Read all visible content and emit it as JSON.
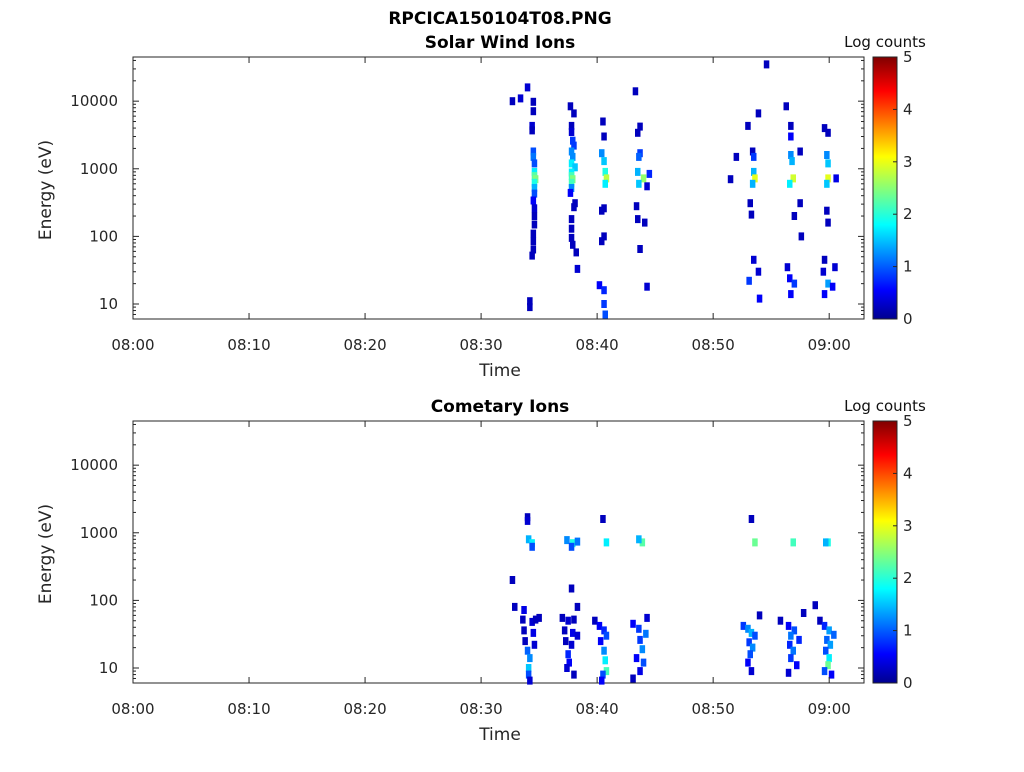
{
  "figure": {
    "title": "RPCICA150104T08.PNG"
  },
  "chart_data": [
    {
      "type": "heatmap",
      "title": "Solar Wind Ions",
      "xlabel": "Time",
      "ylabel": "Energy (eV)",
      "x_tick_labels": [
        "08:00",
        "08:10",
        "08:20",
        "08:30",
        "08:40",
        "08:50",
        "09:00"
      ],
      "x_ticks_min": [
        0,
        10,
        20,
        30,
        40,
        50,
        60
      ],
      "xlim_min": [
        0,
        63
      ],
      "y_scale": "log",
      "y_tick_labels": [
        "10",
        "100",
        "1000",
        "10000"
      ],
      "y_ticks": [
        10,
        100,
        1000,
        10000
      ],
      "ylim": [
        6,
        45000
      ],
      "colorbar": {
        "label": "Log counts",
        "ticks": [
          "0",
          "1",
          "2",
          "3",
          "4",
          "5"
        ],
        "range": [
          0,
          5
        ],
        "colormap": "jet"
      },
      "cells": [
        [
          32.7,
          10000,
          0.3
        ],
        [
          33.4,
          11000,
          0.4
        ],
        [
          34.0,
          16000,
          0.4
        ],
        [
          34.5,
          9800,
          0.3
        ],
        [
          34.5,
          7100,
          0.3
        ],
        [
          34.4,
          4300,
          0.4
        ],
        [
          34.4,
          3700,
          0.3
        ],
        [
          34.5,
          1800,
          1.0
        ],
        [
          34.5,
          1500,
          1.2
        ],
        [
          34.6,
          1200,
          1.0
        ],
        [
          34.6,
          900,
          1.8
        ],
        [
          34.6,
          780,
          2.3
        ],
        [
          34.7,
          700,
          2.5
        ],
        [
          34.6,
          620,
          2.0
        ],
        [
          34.6,
          520,
          1.5
        ],
        [
          34.6,
          430,
          1.0
        ],
        [
          34.5,
          340,
          0.6
        ],
        [
          34.6,
          260,
          0.4
        ],
        [
          34.6,
          200,
          0.3
        ],
        [
          34.6,
          150,
          0.3
        ],
        [
          34.5,
          110,
          0.3
        ],
        [
          34.5,
          85,
          0.3
        ],
        [
          34.5,
          64,
          0.3
        ],
        [
          34.4,
          52,
          0.3
        ],
        [
          34.2,
          11,
          0.3
        ],
        [
          34.2,
          9,
          0.3
        ],
        [
          37.7,
          8400,
          0.3
        ],
        [
          38.0,
          6600,
          0.3
        ],
        [
          37.8,
          4300,
          0.3
        ],
        [
          37.8,
          3500,
          0.4
        ],
        [
          37.9,
          2600,
          0.9
        ],
        [
          38.0,
          2200,
          0.9
        ],
        [
          37.8,
          1800,
          1.3
        ],
        [
          37.9,
          1500,
          1.3
        ],
        [
          37.8,
          1200,
          1.8
        ],
        [
          38.1,
          1050,
          1.6
        ],
        [
          37.8,
          880,
          1.8
        ],
        [
          37.8,
          780,
          2.2
        ],
        [
          37.9,
          700,
          2.5
        ],
        [
          37.8,
          620,
          2.2
        ],
        [
          37.8,
          520,
          1.3
        ],
        [
          37.7,
          440,
          0.6
        ],
        [
          38.1,
          310,
          0.3
        ],
        [
          38.0,
          270,
          0.3
        ],
        [
          37.8,
          180,
          0.3
        ],
        [
          37.8,
          130,
          0.3
        ],
        [
          37.8,
          95,
          0.3
        ],
        [
          37.9,
          75,
          0.3
        ],
        [
          38.2,
          58,
          0.3
        ],
        [
          38.3,
          33,
          0.4
        ],
        [
          40.4,
          1700,
          1.3
        ],
        [
          40.6,
          1300,
          1.6
        ],
        [
          40.7,
          900,
          2.0
        ],
        [
          40.8,
          720,
          2.8
        ],
        [
          40.7,
          600,
          1.8
        ],
        [
          40.5,
          5000,
          0.3
        ],
        [
          40.6,
          3000,
          0.3
        ],
        [
          40.4,
          240,
          0.3
        ],
        [
          40.6,
          260,
          0.3
        ],
        [
          40.4,
          85,
          0.3
        ],
        [
          40.6,
          100,
          0.3
        ],
        [
          40.2,
          19,
          0.6
        ],
        [
          40.6,
          16,
          0.8
        ],
        [
          40.6,
          10,
          0.9
        ],
        [
          40.7,
          7,
          1.0
        ],
        [
          43.3,
          14000,
          0.3
        ],
        [
          43.7,
          4200,
          0.3
        ],
        [
          43.5,
          3400,
          0.3
        ],
        [
          43.7,
          1700,
          0.9
        ],
        [
          43.6,
          1500,
          1.1
        ],
        [
          43.5,
          900,
          1.5
        ],
        [
          44.0,
          720,
          2.6
        ],
        [
          43.6,
          600,
          1.6
        ],
        [
          44.5,
          840,
          0.8
        ],
        [
          44.3,
          550,
          0.4
        ],
        [
          43.4,
          280,
          0.3
        ],
        [
          43.5,
          180,
          0.3
        ],
        [
          44.1,
          160,
          0.3
        ],
        [
          43.7,
          65,
          0.3
        ],
        [
          44.3,
          18,
          0.4
        ],
        [
          51.5,
          700,
          0.3
        ],
        [
          52.0,
          1500,
          0.3
        ],
        [
          53.0,
          4300,
          0.3
        ],
        [
          53.4,
          1800,
          0.3
        ],
        [
          53.5,
          1500,
          0.9
        ],
        [
          53.5,
          900,
          1.5
        ],
        [
          53.6,
          720,
          3.0
        ],
        [
          53.4,
          600,
          1.5
        ],
        [
          53.9,
          6600,
          0.3
        ],
        [
          53.2,
          310,
          0.3
        ],
        [
          53.3,
          210,
          0.3
        ],
        [
          53.5,
          45,
          0.4
        ],
        [
          53.1,
          22,
          0.9
        ],
        [
          53.9,
          30,
          0.4
        ],
        [
          54.0,
          12,
          0.6
        ],
        [
          54.6,
          35000,
          0.3
        ],
        [
          56.3,
          8400,
          0.3
        ],
        [
          56.7,
          4300,
          0.3
        ],
        [
          56.7,
          3000,
          0.6
        ],
        [
          56.7,
          1600,
          1.3
        ],
        [
          56.8,
          1300,
          1.5
        ],
        [
          56.9,
          720,
          2.9
        ],
        [
          56.6,
          600,
          1.8
        ],
        [
          57.5,
          1800,
          0.3
        ],
        [
          57.5,
          310,
          0.3
        ],
        [
          57.0,
          200,
          0.3
        ],
        [
          57.6,
          100,
          0.3
        ],
        [
          56.4,
          35,
          0.4
        ],
        [
          56.6,
          24,
          0.6
        ],
        [
          57.0,
          20,
          0.9
        ],
        [
          56.7,
          14,
          0.6
        ],
        [
          59.6,
          4000,
          0.3
        ],
        [
          59.9,
          3400,
          0.3
        ],
        [
          59.8,
          1600,
          1.3
        ],
        [
          59.9,
          1200,
          1.6
        ],
        [
          59.9,
          720,
          3.0
        ],
        [
          59.8,
          600,
          1.6
        ],
        [
          60.6,
          720,
          0.5
        ],
        [
          59.8,
          240,
          0.3
        ],
        [
          59.9,
          160,
          0.3
        ],
        [
          59.5,
          30,
          0.4
        ],
        [
          59.9,
          20,
          1.4
        ],
        [
          60.3,
          18,
          0.6
        ],
        [
          60.5,
          35,
          0.4
        ],
        [
          59.6,
          45,
          0.3
        ],
        [
          59.6,
          14,
          0.6
        ]
      ]
    },
    {
      "type": "heatmap",
      "title": "Cometary Ions",
      "xlabel": "Time",
      "ylabel": "Energy (eV)",
      "x_tick_labels": [
        "08:00",
        "08:10",
        "08:20",
        "08:30",
        "08:40",
        "08:50",
        "09:00"
      ],
      "x_ticks_min": [
        0,
        10,
        20,
        30,
        40,
        50,
        60
      ],
      "xlim_min": [
        0,
        63
      ],
      "y_scale": "log",
      "y_tick_labels": [
        "10",
        "100",
        "1000",
        "10000"
      ],
      "y_ticks": [
        10,
        100,
        1000,
        10000
      ],
      "ylim": [
        6,
        45000
      ],
      "colorbar": {
        "label": "Log counts",
        "ticks": [
          "0",
          "1",
          "2",
          "3",
          "4",
          "5"
        ],
        "range": [
          0,
          5
        ],
        "colormap": "jet"
      },
      "cells": [
        [
          34.0,
          1700,
          0.3
        ],
        [
          34.0,
          1500,
          0.4
        ],
        [
          34.1,
          800,
          1.5
        ],
        [
          34.4,
          700,
          1.8
        ],
        [
          34.4,
          620,
          1.0
        ],
        [
          37.4,
          780,
          1.3
        ],
        [
          37.9,
          700,
          2.0
        ],
        [
          37.8,
          620,
          1.0
        ],
        [
          38.3,
          740,
          1.2
        ],
        [
          40.8,
          720,
          1.8
        ],
        [
          40.5,
          1600,
          0.3
        ],
        [
          43.9,
          720,
          2.3
        ],
        [
          43.6,
          800,
          1.5
        ],
        [
          53.6,
          720,
          2.4
        ],
        [
          53.3,
          1600,
          0.3
        ],
        [
          56.9,
          720,
          2.2
        ],
        [
          59.9,
          720,
          2.0
        ],
        [
          59.7,
          720,
          1.5
        ],
        [
          32.7,
          200,
          0.3
        ],
        [
          32.9,
          80,
          0.3
        ],
        [
          33.7,
          72,
          0.5
        ],
        [
          37.8,
          150,
          0.3
        ],
        [
          38.3,
          80,
          0.3
        ],
        [
          33.6,
          52,
          0.3
        ],
        [
          34.4,
          48,
          0.4
        ],
        [
          34.7,
          52,
          0.3
        ],
        [
          33.7,
          36,
          0.3
        ],
        [
          34.5,
          33,
          0.5
        ],
        [
          33.8,
          25,
          0.3
        ],
        [
          34.6,
          22,
          0.4
        ],
        [
          34.0,
          18,
          1.1
        ],
        [
          34.2,
          14,
          1.3
        ],
        [
          34.1,
          10,
          1.6
        ],
        [
          34.1,
          8,
          1.0
        ],
        [
          34.2,
          6.5,
          0.4
        ],
        [
          35.0,
          55,
          0.3
        ],
        [
          37.0,
          55,
          0.3
        ],
        [
          37.5,
          50,
          0.4
        ],
        [
          38.0,
          52,
          0.3
        ],
        [
          37.2,
          36,
          0.3
        ],
        [
          37.9,
          33,
          0.5
        ],
        [
          38.3,
          30,
          0.4
        ],
        [
          37.3,
          25,
          0.3
        ],
        [
          37.8,
          22,
          0.4
        ],
        [
          37.5,
          16,
          0.8
        ],
        [
          37.6,
          12,
          0.6
        ],
        [
          37.4,
          10,
          0.4
        ],
        [
          38.0,
          8,
          0.3
        ],
        [
          39.8,
          50,
          0.3
        ],
        [
          40.2,
          42,
          0.6
        ],
        [
          40.6,
          36,
          0.8
        ],
        [
          40.8,
          30,
          1.0
        ],
        [
          40.3,
          25,
          0.6
        ],
        [
          40.6,
          18,
          1.3
        ],
        [
          40.7,
          13,
          1.8
        ],
        [
          40.8,
          9,
          2.2
        ],
        [
          40.5,
          8,
          1.0
        ],
        [
          40.4,
          6.5,
          0.6
        ],
        [
          43.1,
          45,
          0.6
        ],
        [
          43.6,
          38,
          0.9
        ],
        [
          44.2,
          32,
          1.2
        ],
        [
          43.7,
          26,
          0.9
        ],
        [
          43.9,
          19,
          1.3
        ],
        [
          43.4,
          14,
          0.6
        ],
        [
          44.0,
          12,
          1.0
        ],
        [
          43.7,
          9,
          0.5
        ],
        [
          43.1,
          7,
          0.3
        ],
        [
          44.3,
          55,
          0.4
        ],
        [
          52.6,
          42,
          0.9
        ],
        [
          53.0,
          38,
          1.3
        ],
        [
          53.3,
          33,
          1.5
        ],
        [
          53.6,
          30,
          1.0
        ],
        [
          53.1,
          24,
          0.9
        ],
        [
          53.4,
          20,
          1.3
        ],
        [
          53.2,
          16,
          1.0
        ],
        [
          53.0,
          12,
          0.6
        ],
        [
          53.3,
          9,
          0.4
        ],
        [
          54.0,
          60,
          0.3
        ],
        [
          55.8,
          50,
          0.3
        ],
        [
          56.5,
          42,
          0.6
        ],
        [
          57.0,
          36,
          1.0
        ],
        [
          56.7,
          30,
          1.2
        ],
        [
          57.4,
          26,
          0.8
        ],
        [
          56.6,
          22,
          0.8
        ],
        [
          56.9,
          18,
          1.2
        ],
        [
          56.7,
          14,
          0.9
        ],
        [
          57.2,
          11,
          0.6
        ],
        [
          56.5,
          8.5,
          0.4
        ],
        [
          57.8,
          65,
          0.3
        ],
        [
          59.2,
          50,
          0.3
        ],
        [
          59.6,
          42,
          0.8
        ],
        [
          60.0,
          36,
          1.4
        ],
        [
          60.4,
          31,
          1.1
        ],
        [
          59.8,
          26,
          1.1
        ],
        [
          60.1,
          22,
          1.4
        ],
        [
          59.7,
          18,
          1.0
        ],
        [
          60.0,
          14,
          1.8
        ],
        [
          59.9,
          11,
          2.4
        ],
        [
          59.6,
          9,
          1.0
        ],
        [
          60.2,
          8,
          0.6
        ],
        [
          58.8,
          85,
          0.3
        ]
      ]
    }
  ]
}
